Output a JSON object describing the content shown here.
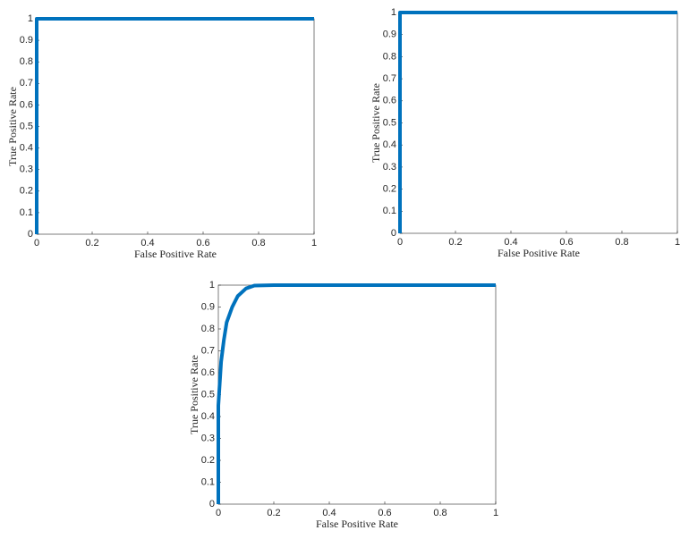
{
  "chart_data": [
    {
      "type": "line",
      "xlabel": "False Positive Rate",
      "ylabel": "True Positive Rate",
      "xlim": [
        0,
        1
      ],
      "ylim": [
        0,
        1
      ],
      "xticks": [
        0,
        0.2,
        0.4,
        0.6,
        0.8,
        1
      ],
      "yticks": [
        0,
        0.1,
        0.2,
        0.3,
        0.4,
        0.5,
        0.6,
        0.7,
        0.8,
        0.9,
        1
      ],
      "grid": false,
      "series": [
        {
          "color": "#0072bd",
          "x": [
            0,
            0,
            1
          ],
          "values": [
            0,
            1,
            1
          ]
        }
      ]
    },
    {
      "type": "line",
      "xlabel": "False Positive Rate",
      "ylabel": "True Positive Rate",
      "xlim": [
        0,
        1
      ],
      "ylim": [
        0,
        1
      ],
      "xticks": [
        0,
        0.2,
        0.4,
        0.6,
        0.8,
        1
      ],
      "yticks": [
        0,
        0.1,
        0.2,
        0.3,
        0.4,
        0.5,
        0.6,
        0.7,
        0.8,
        0.9,
        1
      ],
      "grid": false,
      "series": [
        {
          "color": "#0072bd",
          "x": [
            0,
            0,
            1
          ],
          "values": [
            0,
            1,
            1
          ]
        }
      ]
    },
    {
      "type": "line",
      "xlabel": "False Positive Rate",
      "ylabel": "True Positive Rate",
      "xlim": [
        0,
        1
      ],
      "ylim": [
        0,
        1
      ],
      "xticks": [
        0,
        0.2,
        0.4,
        0.6,
        0.8,
        1
      ],
      "yticks": [
        0,
        0.1,
        0.2,
        0.3,
        0.4,
        0.5,
        0.6,
        0.7,
        0.8,
        0.9,
        1
      ],
      "grid": false,
      "series": [
        {
          "color": "#0072bd",
          "x": [
            0,
            0,
            0.005,
            0.01,
            0.02,
            0.03,
            0.05,
            0.07,
            0.1,
            0.13,
            0.2,
            1
          ],
          "values": [
            0,
            0.45,
            0.55,
            0.65,
            0.75,
            0.83,
            0.9,
            0.95,
            0.985,
            0.998,
            1,
            1
          ]
        }
      ]
    }
  ]
}
